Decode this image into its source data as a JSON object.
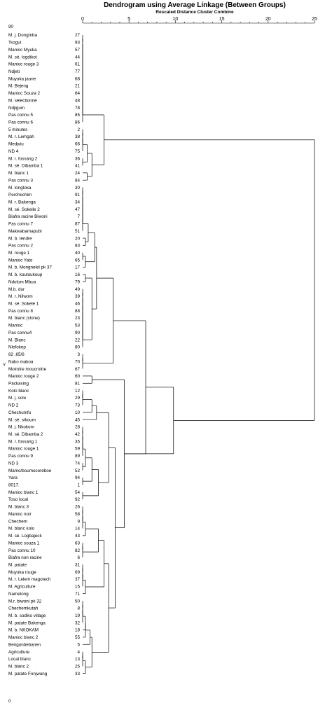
{
  "chart_data": {
    "type": "dendrogram",
    "title": "Dendrogram using Average Linkage (Between Groups)",
    "subtitle": "Rescaled Distance Cluster Combine",
    "x_ticks": [
      0,
      5,
      10,
      15,
      20,
      25
    ],
    "xlim": [
      0,
      25
    ],
    "y_axis_label": "Y",
    "top_edge_label": "90",
    "bottom_edge_label": "0",
    "leaves": [
      {
        "label": "M. j. Dongmba",
        "case": 27
      },
      {
        "label": "Tsogui",
        "case": 93
      },
      {
        "label": "Manioc Myuka",
        "case": 57
      },
      {
        "label": "M. sé. logdikot",
        "case": 44
      },
      {
        "label": "Manioc rouge 3",
        "case": 61
      },
      {
        "label": "Ndjeti",
        "case": 77
      },
      {
        "label": "Muyuka jaune",
        "case": 68
      },
      {
        "label": "M. Bejeng",
        "case": 21
      },
      {
        "label": "Manioc Souza 2",
        "case": 64
      },
      {
        "label": "M. sélectionné",
        "case": 48
      },
      {
        "label": "Ndjigum",
        "case": 78
      },
      {
        "label": "Pas connu 5",
        "case": 85
      },
      {
        "label": "Pas connu 6",
        "case": 86
      },
      {
        "label": "5 minutes",
        "case": 2
      },
      {
        "label": "M. r. Lemgah",
        "case": 38
      },
      {
        "label": "Medjviu",
        "case": 66
      },
      {
        "label": "ND 4",
        "case": 75
      },
      {
        "label": "M. r. fossang 2",
        "case": 36
      },
      {
        "label": "M. sé. Dibamba 1",
        "case": 41
      },
      {
        "label": "M. blanc 1",
        "case": 24
      },
      {
        "label": "Pas connu 3",
        "case": 84
      },
      {
        "label": "M. longtoka",
        "case": 30
      },
      {
        "label": "Perchechim",
        "case": 91
      },
      {
        "label": "M. r. Bakenga",
        "case": 34
      },
      {
        "label": "M. sé. Sokelle 2",
        "case": 47
      },
      {
        "label": "Biafra racine Biwoni",
        "case": 7
      },
      {
        "label": "Pas connu 7",
        "case": 87
      },
      {
        "label": "Makwabamapubi",
        "case": 51
      },
      {
        "label": "M. b. tendre",
        "case": 20
      },
      {
        "label": "Pas connu 2",
        "case": 83
      },
      {
        "label": "M. rouge 1",
        "case": 40
      },
      {
        "label": "Manioc Yato",
        "case": 65
      },
      {
        "label": "M. b. Mongnelel pk 37",
        "case": 17
      },
      {
        "label": "M. b. koutoukoup",
        "case": 16
      },
      {
        "label": "Ndolom Mbua",
        "case": 79
      },
      {
        "label": "M.b. dur",
        "case": 49
      },
      {
        "label": "M. r. Nilwom",
        "case": 39
      },
      {
        "label": "M. sé. Sokele 1",
        "case": 46
      },
      {
        "label": "Pas connu 8",
        "case": 88
      },
      {
        "label": "M. blanc (clone)",
        "case": 23
      },
      {
        "label": "Manioc",
        "case": 53
      },
      {
        "label": "Pas connu4",
        "case": 90
      },
      {
        "label": "M. Blanc",
        "case": 22
      },
      {
        "label": "Nlefokep",
        "case": 80
      },
      {
        "label": "82 ,65/6",
        "case": 3
      },
      {
        "label": "Nako makoa",
        "case": 70
      },
      {
        "label": "Moindre moucroitre",
        "case": 67
      },
      {
        "label": "Manioc rouge 2",
        "case": 60
      },
      {
        "label": "Packasing",
        "case": 81
      },
      {
        "label": "Kolo blanc",
        "case": 12
      },
      {
        "label": "M. j. sole",
        "case": 29
      },
      {
        "label": "ND 2",
        "case": 73
      },
      {
        "label": "Chechumfu",
        "case": 10
      },
      {
        "label": "M. sé. sikoum",
        "case": 45
      },
      {
        "label": "M. j. Nkokom",
        "case": 28
      },
      {
        "label": "M. sé. Dibamba 2",
        "case": 42
      },
      {
        "label": "M. r. fossang 1",
        "case": 35
      },
      {
        "label": "Manioc rouge 1",
        "case": 59
      },
      {
        "label": "Pas connu 9",
        "case": 89
      },
      {
        "label": "ND 3",
        "case": 74
      },
      {
        "label": "Mamo/boumocoreboe",
        "case": 52
      },
      {
        "label": "Yara",
        "case": 94
      },
      {
        "label": "8017.",
        "case": 1
      },
      {
        "label": "Manioc blanc 1",
        "case": 54
      },
      {
        "label": "Toso local",
        "case": 92
      },
      {
        "label": "M. blanc 3",
        "case": 26
      },
      {
        "label": "Manioc noir",
        "case": 58
      },
      {
        "label": "Chechem",
        "case": 9
      },
      {
        "label": "M. blanc kolo",
        "case": 14
      },
      {
        "label": "M. sé. Logbajeck",
        "case": 43
      },
      {
        "label": "Manioc souza 1",
        "case": 63
      },
      {
        "label": "Pas connu 10",
        "case": 82
      },
      {
        "label": "Biafra non racine",
        "case": 6
      },
      {
        "label": "M. patate",
        "case": 31
      },
      {
        "label": "Muyuka rouge",
        "case": 69
      },
      {
        "label": "M. r. Lelem magotech",
        "case": 37
      },
      {
        "label": "M. Agriculture",
        "case": 15
      },
      {
        "label": "Namelong",
        "case": 71
      },
      {
        "label": "M.r. biwoni pk 32",
        "case": 50
      },
      {
        "label": "Chechemkutah",
        "case": 8
      },
      {
        "label": "M. b. sodiko village",
        "case": 19
      },
      {
        "label": "M. patate Bakenga",
        "case": 32
      },
      {
        "label": "M. b. NKOKAM",
        "case": 18
      },
      {
        "label": "Manioc blanc 2",
        "case": 55
      },
      {
        "label": "Bengonbebanen",
        "case": 5
      },
      {
        "label": "Agriculture",
        "case": 4
      },
      {
        "label": "Local blanc",
        "case": 13
      },
      {
        "label": "M. blanc 2",
        "case": 25
      },
      {
        "label": "M. patate Fonjwang",
        "case": 33
      }
    ],
    "merges": [
      {
        "a": 0,
        "b": 1,
        "height": 0.0
      },
      {
        "a": 0,
        "b": 2,
        "height": 0.0
      },
      {
        "a": 0,
        "b": 3,
        "height": 0.0
      },
      {
        "a": 0,
        "b": 4,
        "height": 0.0
      },
      {
        "a": 0,
        "b": 5,
        "height": 0.0
      },
      {
        "a": 0,
        "b": 6,
        "height": 0.0
      },
      {
        "a": 0,
        "b": 7,
        "height": 0.0
      },
      {
        "a": 0,
        "b": 8,
        "height": 0.0
      },
      {
        "a": 0,
        "b": 9,
        "height": 0.0
      },
      {
        "a": 0,
        "b": 10,
        "height": 0.0
      },
      {
        "a": 0,
        "b": 11,
        "height": 0.0
      },
      {
        "a": 0,
        "b": 12,
        "height": 0.0
      },
      {
        "a": 13,
        "b": 14,
        "height": 0.0
      },
      {
        "a": 13,
        "b": 15,
        "height": 0.0
      },
      {
        "a": 13,
        "b": 16,
        "height": 0.0
      },
      {
        "a": 17,
        "b": 18,
        "height": 0.0
      },
      {
        "a": 13,
        "b": 17,
        "height": 0.5
      },
      {
        "a": 19,
        "b": 20,
        "height": 0.5
      },
      {
        "a": 13,
        "b": 19,
        "height": 1.0
      },
      {
        "a": 0,
        "b": 13,
        "height": 2.3
      },
      {
        "a": 21,
        "b": 22,
        "height": 0.0
      },
      {
        "a": 21,
        "b": 23,
        "height": 0.0
      },
      {
        "a": 21,
        "b": 24,
        "height": 0.0
      },
      {
        "a": 21,
        "b": 25,
        "height": 0.0
      },
      {
        "a": 21,
        "b": 26,
        "height": 0.0
      },
      {
        "a": 21,
        "b": 27,
        "height": 0.0
      },
      {
        "a": 28,
        "b": 29,
        "height": 0.3
      },
      {
        "a": 21,
        "b": 28,
        "height": 0.6
      },
      {
        "a": 30,
        "b": 31,
        "height": 0.0
      },
      {
        "a": 30,
        "b": 32,
        "height": 0.3
      },
      {
        "a": 21,
        "b": 30,
        "height": 1.3
      },
      {
        "a": 33,
        "b": 34,
        "height": 0.3
      },
      {
        "a": 35,
        "b": 36,
        "height": 0.0
      },
      {
        "a": 35,
        "b": 37,
        "height": 0.0
      },
      {
        "a": 35,
        "b": 38,
        "height": 0.0
      },
      {
        "a": 35,
        "b": 39,
        "height": 0.0
      },
      {
        "a": 35,
        "b": 40,
        "height": 0.0
      },
      {
        "a": 35,
        "b": 41,
        "height": 0.0
      },
      {
        "a": 35,
        "b": 42,
        "height": 0.0
      },
      {
        "a": 35,
        "b": 43,
        "height": 0.0
      },
      {
        "a": 33,
        "b": 35,
        "height": 1.0
      },
      {
        "a": 21,
        "b": 33,
        "height": 1.5
      },
      {
        "a": 44,
        "b": 45,
        "height": 0.0
      },
      {
        "a": 44,
        "b": 46,
        "height": 0.0
      },
      {
        "a": 21,
        "b": 44,
        "height": 3.3
      },
      {
        "a": 47,
        "b": 48,
        "height": 1.0
      },
      {
        "a": 49,
        "b": 50,
        "height": 0.0
      },
      {
        "a": 49,
        "b": 51,
        "height": 0.0
      },
      {
        "a": 49,
        "b": 52,
        "height": 1.0
      },
      {
        "a": 49,
        "b": 53,
        "height": 1.5
      },
      {
        "a": 54,
        "b": 55,
        "height": 0.0
      },
      {
        "a": 54,
        "b": 56,
        "height": 0.0
      },
      {
        "a": 54,
        "b": 57,
        "height": 0.0
      },
      {
        "a": 54,
        "b": 58,
        "height": 0.0
      },
      {
        "a": 59,
        "b": 60,
        "height": 0.0
      },
      {
        "a": 54,
        "b": 59,
        "height": 0.3
      },
      {
        "a": 61,
        "b": 62,
        "height": 0.0
      },
      {
        "a": 54,
        "b": 61,
        "height": 1.0
      },
      {
        "a": 63,
        "b": 64,
        "height": 0.0
      },
      {
        "a": 54,
        "b": 63,
        "height": 1.7
      },
      {
        "a": 49,
        "b": 54,
        "height": 2.8
      },
      {
        "a": 65,
        "b": 66,
        "height": 0.0
      },
      {
        "a": 65,
        "b": 67,
        "height": 0.0
      },
      {
        "a": 65,
        "b": 68,
        "height": 0.0
      },
      {
        "a": 65,
        "b": 69,
        "height": 0.3
      },
      {
        "a": 70,
        "b": 71,
        "height": 0.0
      },
      {
        "a": 70,
        "b": 72,
        "height": 0.0
      },
      {
        "a": 65,
        "b": 70,
        "height": 1.7
      },
      {
        "a": 73,
        "b": 74,
        "height": 0.0
      },
      {
        "a": 73,
        "b": 75,
        "height": 0.0
      },
      {
        "a": 73,
        "b": 76,
        "height": 0.0
      },
      {
        "a": 73,
        "b": 77,
        "height": 0.3
      },
      {
        "a": 65,
        "b": 73,
        "height": 2.3
      },
      {
        "a": 78,
        "b": 79,
        "height": 0.0
      },
      {
        "a": 78,
        "b": 80,
        "height": 0.0
      },
      {
        "a": 78,
        "b": 81,
        "height": 0.0
      },
      {
        "a": 78,
        "b": 82,
        "height": 0.3
      },
      {
        "a": 78,
        "b": 83,
        "height": 0.3
      },
      {
        "a": 78,
        "b": 84,
        "height": 0.8
      },
      {
        "a": 85,
        "b": 86,
        "height": 0.0
      },
      {
        "a": 85,
        "b": 87,
        "height": 0.0
      },
      {
        "a": 85,
        "b": 88,
        "height": 0.3
      },
      {
        "a": 78,
        "b": 85,
        "height": 1.0
      },
      {
        "a": 65,
        "b": 78,
        "height": 2.8
      },
      {
        "a": 49,
        "b": 65,
        "height": 3.5
      },
      {
        "a": 47,
        "b": 49,
        "height": 4.5
      },
      {
        "a": 21,
        "b": 47,
        "height": 6.8
      },
      {
        "a": 21,
        "b": 47,
        "height": 9.8
      },
      {
        "a": 0,
        "b": 21,
        "height": 25.0
      }
    ]
  }
}
